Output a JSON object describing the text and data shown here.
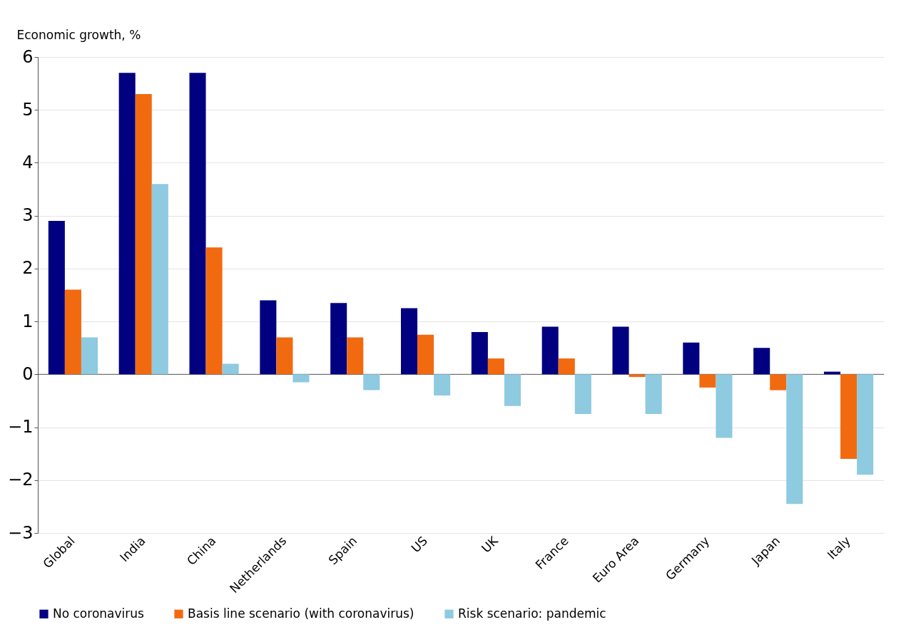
{
  "chart_data": {
    "type": "bar",
    "ylabel": "Economic growth, %",
    "categories": [
      "Global",
      "India",
      "China",
      "Netherlands",
      "Spain",
      "US",
      "UK",
      "France",
      "Euro Area",
      "Germany",
      "Japan",
      "Italy"
    ],
    "series": [
      {
        "name": "No coronavirus",
        "color": "#000080",
        "values": [
          2.9,
          5.7,
          5.7,
          1.4,
          1.35,
          1.25,
          0.8,
          0.9,
          0.9,
          0.6,
          0.5,
          0.05
        ]
      },
      {
        "name": "Basis line scenario (with coronavirus)",
        "color": "#f26a10",
        "values": [
          1.6,
          5.3,
          2.4,
          0.7,
          0.7,
          0.75,
          0.3,
          0.3,
          -0.05,
          -0.25,
          -0.3,
          -1.6
        ]
      },
      {
        "name": "Risk scenario: pandemic",
        "color": "#8ecae0",
        "values": [
          0.7,
          3.6,
          0.2,
          -0.15,
          -0.3,
          -0.4,
          -0.6,
          -0.75,
          -0.75,
          -1.2,
          -2.45,
          -1.9
        ]
      }
    ],
    "ylim": [
      -3,
      6
    ],
    "yticks": [
      -3,
      -2,
      -1,
      0,
      1,
      2,
      3,
      4,
      5,
      6
    ],
    "grid": "y",
    "legend": "bottom"
  }
}
